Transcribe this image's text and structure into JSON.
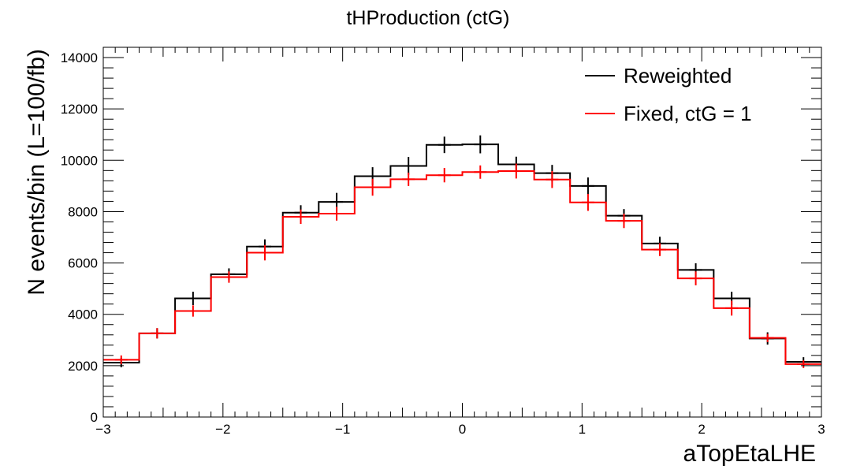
{
  "chart_data": {
    "type": "histogram",
    "title": "tHProduction (ctG)",
    "xlabel": "aTopEtaLHE",
    "ylabel": "N events/bin (L=100/fb)",
    "xlim": [
      -3,
      3
    ],
    "ylim": [
      0,
      14400
    ],
    "xticks": [
      -3,
      -2,
      -1,
      0,
      1,
      2,
      3
    ],
    "xtick_labels": [
      "−3",
      "−2",
      "−1",
      "0",
      "1",
      "2",
      "3"
    ],
    "yticks": [
      0,
      2000,
      4000,
      6000,
      8000,
      10000,
      12000,
      14000
    ],
    "ytick_labels": [
      "0",
      "2000",
      "4000",
      "6000",
      "8000",
      "10000",
      "12000",
      "14000"
    ],
    "bin_edges": [
      -3.0,
      -2.7,
      -2.4,
      -2.1,
      -1.8,
      -1.5,
      -1.2,
      -0.9,
      -0.6,
      -0.3,
      0.0,
      0.3,
      0.6,
      0.9,
      1.2,
      1.5,
      1.8,
      2.1,
      2.4,
      2.7,
      3.0
    ],
    "legend_position": "top-right",
    "grid": false,
    "series": [
      {
        "name": "Reweighted",
        "color": "#000000",
        "values": [
          2120,
          3260,
          4620,
          5560,
          6640,
          7960,
          8380,
          9380,
          9780,
          10600,
          10620,
          9840,
          9500,
          9000,
          7840,
          6760,
          5730,
          4620,
          3060,
          2150
        ],
        "errors": [
          180,
          200,
          260,
          230,
          280,
          290,
          350,
          350,
          350,
          320,
          350,
          300,
          320,
          330,
          260,
          260,
          260,
          260,
          240,
          180
        ]
      },
      {
        "name": "Fixed, ctG = 1",
        "color": "#ff0000",
        "values": [
          2230,
          3260,
          4130,
          5450,
          6400,
          7800,
          7920,
          8950,
          9260,
          9420,
          9540,
          9580,
          9250,
          8360,
          7640,
          6520,
          5400,
          4240,
          3080,
          2060
        ],
        "errors": [
          170,
          200,
          220,
          220,
          300,
          280,
          270,
          330,
          260,
          280,
          260,
          290,
          330,
          330,
          280,
          250,
          270,
          290,
          160,
          150
        ]
      }
    ]
  }
}
